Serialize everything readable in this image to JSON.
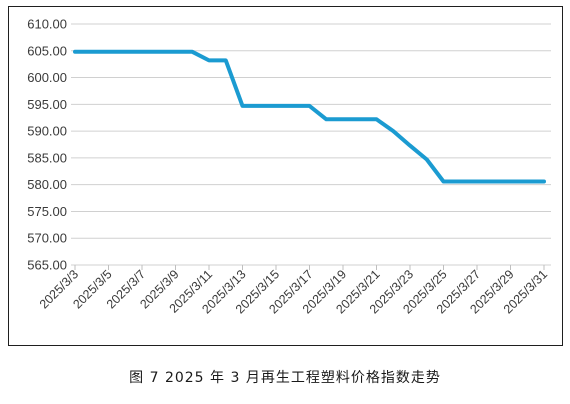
{
  "caption": "图 7  2025 年 3 月再生工程塑料价格指数走势",
  "colors": {
    "line": "#1b9bd1",
    "grid": "#d0d0d0",
    "axis": "#bfbfbf"
  },
  "chart_data": {
    "type": "line",
    "title": "",
    "xlabel": "",
    "ylabel": "",
    "ylim": [
      565.0,
      610.0
    ],
    "ytick_step": 5,
    "ytick_labels": [
      "565.00",
      "570.00",
      "575.00",
      "580.00",
      "585.00",
      "590.00",
      "595.00",
      "600.00",
      "605.00",
      "610.00"
    ],
    "x": [
      "2025/3/3",
      "2025/3/4",
      "2025/3/5",
      "2025/3/6",
      "2025/3/7",
      "2025/3/8",
      "2025/3/9",
      "2025/3/10",
      "2025/3/11",
      "2025/3/12",
      "2025/3/13",
      "2025/3/14",
      "2025/3/15",
      "2025/3/16",
      "2025/3/17",
      "2025/3/18",
      "2025/3/19",
      "2025/3/20",
      "2025/3/21",
      "2025/3/22",
      "2025/3/23",
      "2025/3/24",
      "2025/3/25",
      "2025/3/26",
      "2025/3/27",
      "2025/3/28",
      "2025/3/29",
      "2025/3/30",
      "2025/3/31"
    ],
    "xtick_labels": [
      "2025/3/3",
      "2025/3/5",
      "2025/3/7",
      "2025/3/9",
      "2025/3/11",
      "2025/3/13",
      "2025/3/15",
      "2025/3/17",
      "2025/3/19",
      "2025/3/21",
      "2025/3/23",
      "2025/3/25",
      "2025/3/27",
      "2025/3/29",
      "2025/3/31"
    ],
    "series": [
      {
        "values": [
          604.8,
          604.8,
          604.8,
          604.8,
          604.8,
          604.8,
          604.8,
          604.8,
          603.2,
          603.2,
          594.7,
          594.7,
          594.7,
          594.7,
          594.7,
          592.2,
          592.2,
          592.2,
          592.2,
          590.0,
          587.3,
          584.7,
          580.6,
          580.6,
          580.6,
          580.6,
          580.6,
          580.6,
          580.6
        ]
      }
    ],
    "grid": true,
    "legend": "none"
  }
}
